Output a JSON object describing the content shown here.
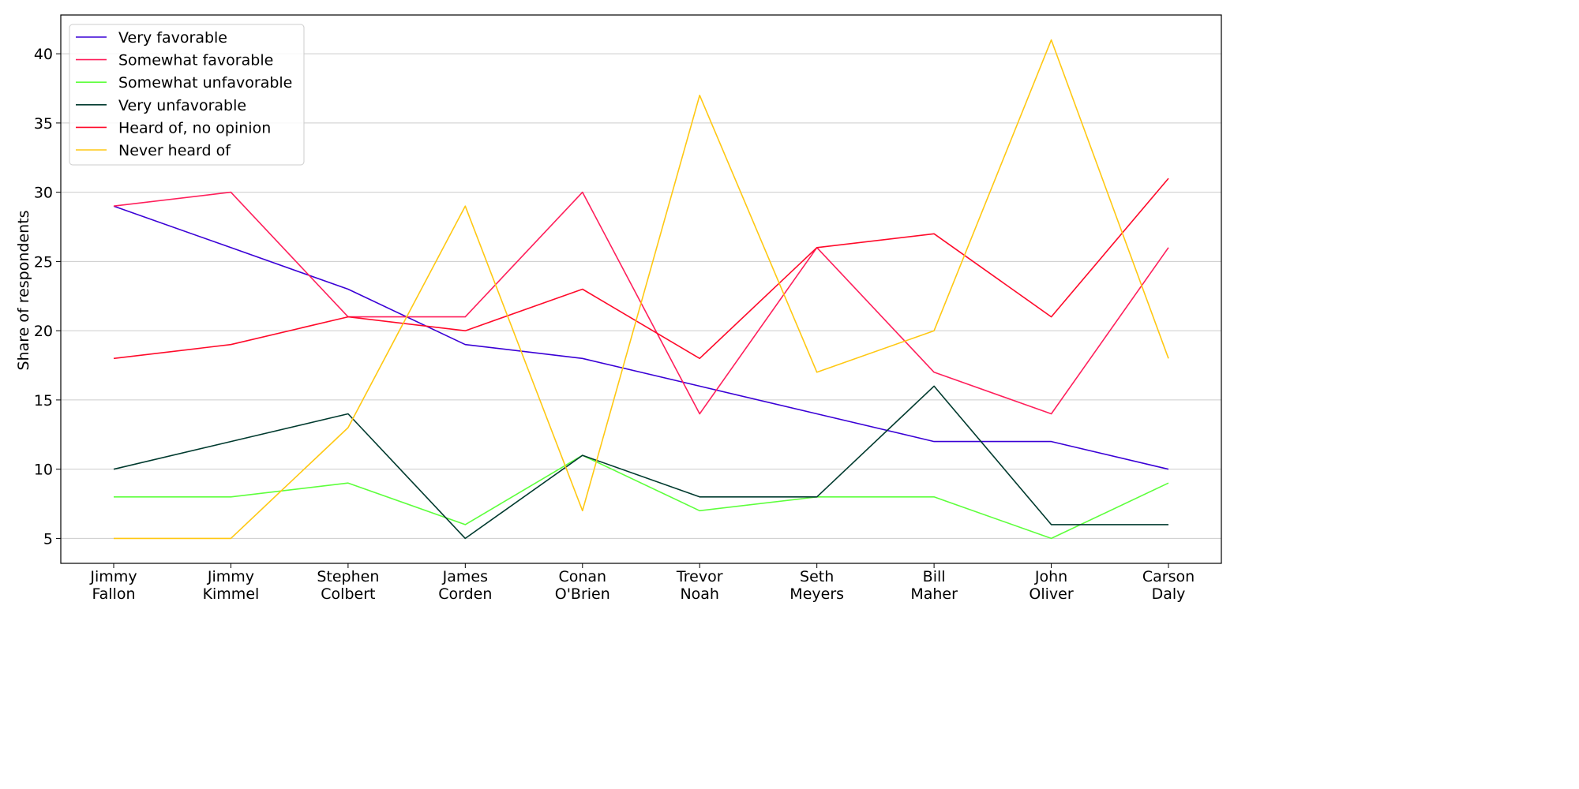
{
  "chart_data": {
    "type": "line",
    "title": "",
    "xlabel": "",
    "ylabel": "Share of respondents",
    "ylim": [
      3.2,
      42.8
    ],
    "yticks": [
      5,
      10,
      15,
      20,
      25,
      30,
      35,
      40
    ],
    "grid": "horizontal",
    "legend_position": "top-left",
    "categories": [
      [
        "Jimmy",
        "Fallon"
      ],
      [
        "Jimmy",
        "Kimmel"
      ],
      [
        "Stephen",
        "Colbert"
      ],
      [
        "James",
        "Corden"
      ],
      [
        "Conan",
        "O'Brien"
      ],
      [
        "Trevor",
        "Noah"
      ],
      [
        "Seth",
        "Meyers"
      ],
      [
        "Bill",
        "Maher"
      ],
      [
        "John",
        "Oliver"
      ],
      [
        "Carson",
        "Daly"
      ]
    ],
    "series": [
      {
        "name": "Very favorable",
        "color": "#3a00d6",
        "values": [
          29,
          26,
          23,
          19,
          18,
          16,
          14,
          12,
          12,
          10
        ]
      },
      {
        "name": "Somewhat favorable",
        "color": "#ff1f5b",
        "values": [
          29,
          30,
          21,
          21,
          30,
          14,
          26,
          17,
          14,
          26
        ]
      },
      {
        "name": "Somewhat unfavorable",
        "color": "#5dff3c",
        "values": [
          8,
          8,
          9,
          6,
          11,
          7,
          8,
          8,
          5,
          9
        ]
      },
      {
        "name": "Very unfavorable",
        "color": "#003a2e",
        "values": [
          10,
          12,
          14,
          5,
          11,
          8,
          8,
          16,
          6,
          6
        ]
      },
      {
        "name": "Heard of, no opinion",
        "color": "#ff0a2a",
        "values": [
          18,
          19,
          21,
          20,
          23,
          18,
          26,
          27,
          21,
          31
        ]
      },
      {
        "name": "Never heard of",
        "color": "#ffc813",
        "values": [
          5,
          5,
          13,
          29,
          7,
          37,
          17,
          20,
          41,
          18
        ]
      }
    ]
  }
}
